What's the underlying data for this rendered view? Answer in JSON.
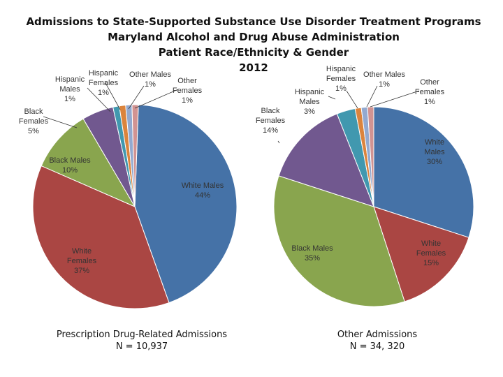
{
  "header": {
    "title_lines": [
      "Admissions to State-Supported Substance Use Disorder Treatment Programs",
      "Maryland Alcohol and Drug Abuse Administration",
      "Patient Race/Ethnicity & Gender",
      "2012"
    ]
  },
  "chart_data": [
    {
      "type": "pie",
      "title": "Prescription Drug-Related Admissions",
      "n_label": "N = 10,937",
      "slices": [
        {
          "label": "White Males",
          "label_lines": [
            "White Males",
            "44%"
          ],
          "value": 44,
          "color": "#4572a7"
        },
        {
          "label": "White Females",
          "label_lines": [
            "White",
            "Females",
            "37%"
          ],
          "value": 37,
          "color": "#aa4643"
        },
        {
          "label": "Black Males",
          "label_lines": [
            "Black Males",
            "10%"
          ],
          "value": 10,
          "color": "#89a54e"
        },
        {
          "label": "Black Females",
          "label_lines": [
            "Black",
            "Females",
            "5%"
          ],
          "value": 5,
          "color": "#71588f"
        },
        {
          "label": "Hispanic Males",
          "label_lines": [
            "Hispanic",
            "Males",
            "1%"
          ],
          "value": 1,
          "color": "#4198af"
        },
        {
          "label": "Hispanic Females",
          "label_lines": [
            "Hispanic",
            "Females",
            "1%"
          ],
          "value": 1,
          "color": "#db843d"
        },
        {
          "label": "Other Males",
          "label_lines": [
            "Other Males",
            "1%"
          ],
          "value": 1,
          "color": "#93a9cf"
        },
        {
          "label": "Other Females",
          "label_lines": [
            "Other",
            "Females",
            "1%"
          ],
          "value": 1,
          "color": "#d19392"
        }
      ]
    },
    {
      "type": "pie",
      "title": "Other Admissions",
      "n_label": "N = 34, 320",
      "slices": [
        {
          "label": "White Males",
          "label_lines": [
            "White",
            "Males",
            "30%"
          ],
          "value": 30,
          "color": "#4572a7"
        },
        {
          "label": "White Females",
          "label_lines": [
            "White",
            "Females",
            "15%"
          ],
          "value": 15,
          "color": "#aa4643"
        },
        {
          "label": "Black Males",
          "label_lines": [
            "Black Males",
            "35%"
          ],
          "value": 35,
          "color": "#89a54e"
        },
        {
          "label": "Black Females",
          "label_lines": [
            "Black",
            "Females",
            "14%"
          ],
          "value": 14,
          "color": "#71588f"
        },
        {
          "label": "Hispanic Males",
          "label_lines": [
            "Hispanic",
            "Males",
            "3%"
          ],
          "value": 3,
          "color": "#4198af"
        },
        {
          "label": "Hispanic Females",
          "label_lines": [
            "Hispanic",
            "Females",
            "1%"
          ],
          "value": 1,
          "color": "#db843d"
        },
        {
          "label": "Other Males",
          "label_lines": [
            "Other Males",
            "1%"
          ],
          "value": 1,
          "color": "#93a9cf"
        },
        {
          "label": "Other Females",
          "label_lines": [
            "Other",
            "Females",
            "1%"
          ],
          "value": 1,
          "color": "#d19392"
        }
      ]
    }
  ]
}
